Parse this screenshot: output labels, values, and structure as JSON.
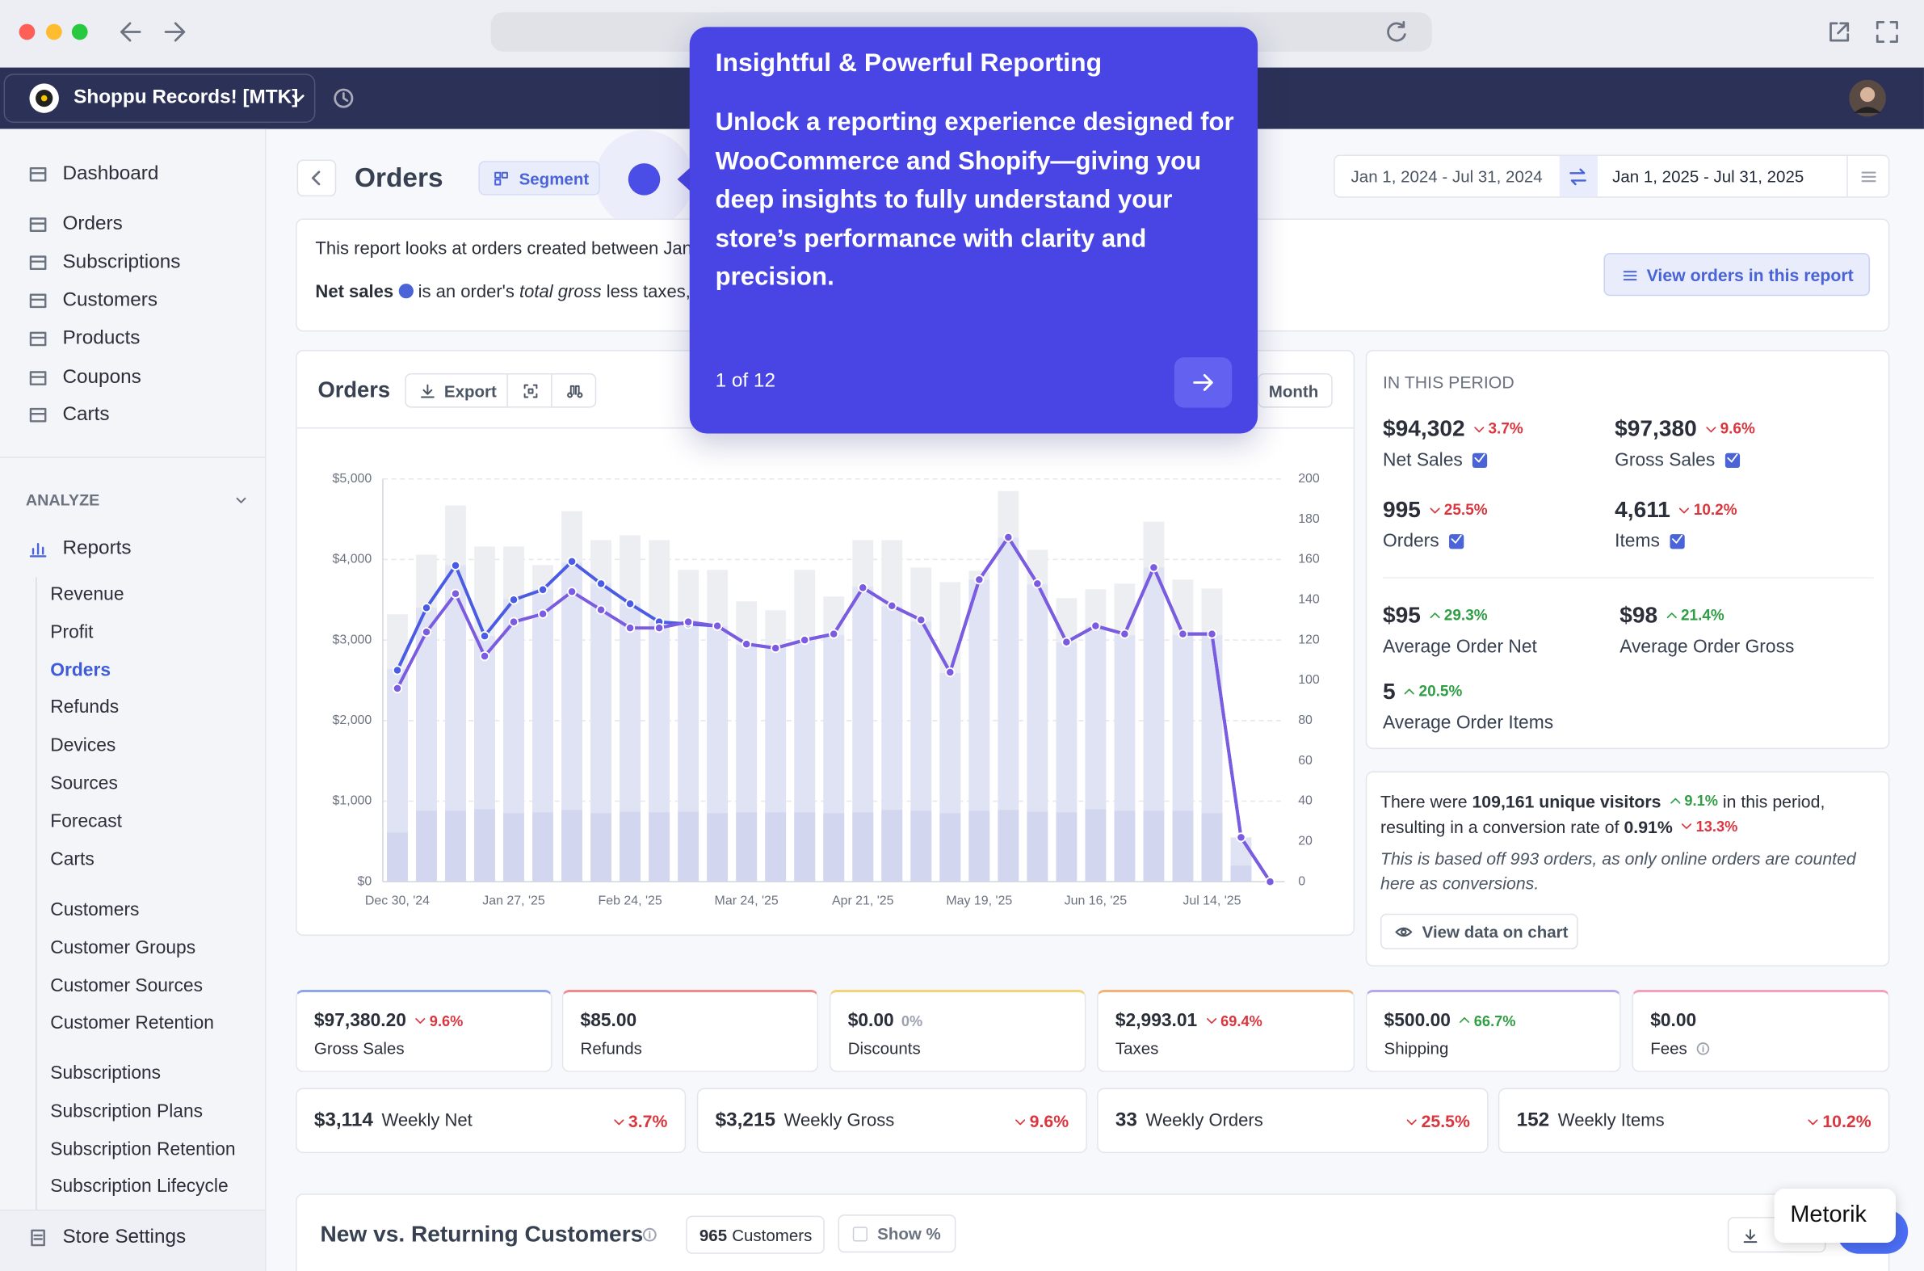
{
  "header": {
    "store": "Shoppu Records! [MTK]"
  },
  "sidebar": {
    "main": [
      "Dashboard",
      "Orders",
      "Subscriptions",
      "Customers",
      "Products",
      "Coupons",
      "Carts"
    ],
    "section": "ANALYZE",
    "reports": "Reports",
    "report_links": [
      [
        "Revenue",
        "Profit",
        "Orders",
        "Refunds",
        "Devices",
        "Sources",
        "Forecast",
        "Carts"
      ],
      [
        "Customers",
        "Customer Groups",
        "Customer Sources",
        "Customer Retention"
      ],
      [
        "Subscriptions",
        "Subscription Plans",
        "Subscription Retention",
        "Subscription Lifecycle"
      ]
    ],
    "active": "Orders",
    "store_settings": "Store Settings"
  },
  "toolbar": {
    "title": "Orders",
    "segment": "Segment",
    "range_compare": "Jan 1, 2024 - Jul 31, 2024",
    "range_current": "Jan 1, 2025 - Jul 31, 2025"
  },
  "intro": {
    "line1": "This report looks at orders created between Jan",
    "net_sales": "Net sales",
    "line2": " is an order's ",
    "total_gross": "total gross",
    "line2_rest": " less taxes,",
    "view_orders": "View orders in this report"
  },
  "chart_panel": {
    "export": "Export",
    "period": "Month"
  },
  "chart_data": {
    "type": "bar",
    "title": "Orders",
    "categories": [
      "Dec 30, '24",
      null,
      null,
      null,
      "Jan 27, '25",
      null,
      null,
      null,
      "Feb 24, '25",
      null,
      null,
      null,
      "Mar 24, '25",
      null,
      null,
      null,
      "Apr 21, '25",
      null,
      null,
      null,
      "May 19, '25",
      null,
      null,
      null,
      "Jun 16, '25",
      null,
      null,
      null,
      "Jul 14, '25",
      null,
      null
    ],
    "series": [
      {
        "color": "#eceef2",
        "values": [
          3320,
          4060,
          4670,
          4160,
          4160,
          3930,
          4600,
          4240,
          4300,
          4240,
          3870,
          3870,
          3480,
          3370,
          3870,
          3540,
          4240,
          4240,
          3900,
          3720,
          3860,
          4850,
          4120,
          3520,
          3630,
          3700,
          4470,
          3750,
          3640,
          530,
          0
        ]
      },
      {
        "color": "#e0e3f3",
        "values": [
          2640,
          3400,
          3930,
          3050,
          3510,
          3630,
          3960,
          3700,
          3450,
          3230,
          3200,
          3170,
          2940,
          2910,
          2990,
          3060,
          3660,
          3420,
          3230,
          2590,
          3750,
          4270,
          3690,
          2970,
          3170,
          3060,
          3900,
          3060,
          3060,
          550,
          0
        ]
      },
      {
        "color": "#d2d7ef",
        "values": [
          610,
          880,
          880,
          900,
          850,
          860,
          890,
          850,
          870,
          860,
          870,
          850,
          860,
          860,
          860,
          850,
          860,
          890,
          880,
          850,
          880,
          890,
          870,
          860,
          900,
          880,
          880,
          880,
          850,
          200,
          0
        ]
      },
      {
        "type": "line",
        "axis": "y2",
        "color": "#4b5ce4",
        "values": [
          105,
          136,
          157,
          122,
          140,
          145,
          159,
          148,
          138,
          129,
          128,
          127,
          118,
          116,
          120,
          123,
          146,
          137,
          130,
          104,
          150,
          171,
          148,
          119,
          127,
          123,
          156,
          123,
          123,
          22,
          0
        ]
      },
      {
        "type": "line",
        "axis": "y2",
        "color": "#7b5be0",
        "values": [
          96,
          124,
          143,
          112,
          129,
          133,
          144,
          135,
          126,
          126,
          129,
          127,
          118,
          116,
          120,
          123,
          146,
          137,
          130,
          104,
          150,
          171,
          148,
          119,
          127,
          123,
          156,
          123,
          123,
          22,
          0
        ]
      }
    ],
    "ylim": [
      0,
      5000
    ],
    "yticks": [
      {
        "value": 0,
        "label": "$0"
      },
      {
        "value": 1000,
        "label": "$1,000"
      },
      {
        "value": 2000,
        "label": "$2,000"
      },
      {
        "value": 3000,
        "label": "$3,000"
      },
      {
        "value": 4000,
        "label": "$4,000"
      },
      {
        "value": 5000,
        "label": "$5,000"
      }
    ],
    "y2lim": [
      0,
      200
    ],
    "y2ticks": [
      0,
      20,
      40,
      60,
      80,
      100,
      120,
      140,
      160,
      180,
      200
    ],
    "grid": true
  },
  "period": {
    "heading": "IN THIS PERIOD",
    "stats": [
      {
        "value": "$94,302",
        "change": "3.7%",
        "trend": "down",
        "label": "Net Sales",
        "checked": true
      },
      {
        "value": "$97,380",
        "change": "9.6%",
        "trend": "down",
        "label": "Gross Sales",
        "checked": true
      },
      {
        "value": "995",
        "change": "25.5%",
        "trend": "down",
        "label": "Orders",
        "checked": true
      },
      {
        "value": "4,611",
        "change": "10.2%",
        "trend": "down",
        "label": "Items",
        "checked": true
      },
      {
        "value": "$95",
        "change": "29.3%",
        "trend": "up",
        "label": "Average Order Net"
      },
      {
        "value": "$98",
        "change": "21.4%",
        "trend": "up",
        "label": "Average Order Gross"
      },
      {
        "value": "5",
        "change": "20.5%",
        "trend": "up",
        "label": "Average Order Items"
      }
    ]
  },
  "visitors": {
    "prefix": "There were ",
    "visitors": "109,161 unique visitors",
    "visitors_change": "9.1%",
    "mid": " in this period, resulting in a conversion rate of ",
    "rate": "0.91%",
    "rate_change": "13.3%",
    "note": "This is based off 993 orders, as only online orders are counted here as conversions.",
    "button": "View data on chart"
  },
  "totals": [
    {
      "value": "$97,380.20",
      "change": "9.6%",
      "trend": "down",
      "label": "Gross Sales",
      "color": "#8fa4ea"
    },
    {
      "value": "$85.00",
      "label": "Refunds",
      "color": "#f08a8a"
    },
    {
      "value": "$0.00",
      "change": "0%",
      "trend": "flat",
      "label": "Discounts",
      "color": "#f2d37a"
    },
    {
      "value": "$2,993.01",
      "change": "69.4%",
      "trend": "down",
      "label": "Taxes",
      "color": "#f4b27a"
    },
    {
      "value": "$500.00",
      "change": "66.7%",
      "trend": "up",
      "label": "Shipping",
      "color": "#b6a6ee"
    },
    {
      "value": "$0.00",
      "label": "Fees",
      "color": "#f3a0b8"
    }
  ],
  "weekly": [
    {
      "value": "$3,114",
      "label": "Weekly Net",
      "change": "3.7%",
      "trend": "down"
    },
    {
      "value": "$3,215",
      "label": "Weekly Gross",
      "change": "9.6%",
      "trend": "down"
    },
    {
      "value": "33",
      "label": "Weekly Orders",
      "change": "25.5%",
      "trend": "down"
    },
    {
      "value": "152",
      "label": "Weekly Items",
      "change": "10.2%",
      "trend": "down"
    }
  ],
  "returning": {
    "title": "New vs. Returning Customers",
    "count": "965",
    "count_label": "Customers",
    "show_pct": "Show %"
  },
  "tour": {
    "title": "Insightful & Powerful Reporting",
    "body": "Unlock a reporting experience designed for WooCommerce and Shopify—giving you deep insights to fully understand your store’s performance with clarity and precision.",
    "step": "1 of 12"
  },
  "badge": "Metorik"
}
